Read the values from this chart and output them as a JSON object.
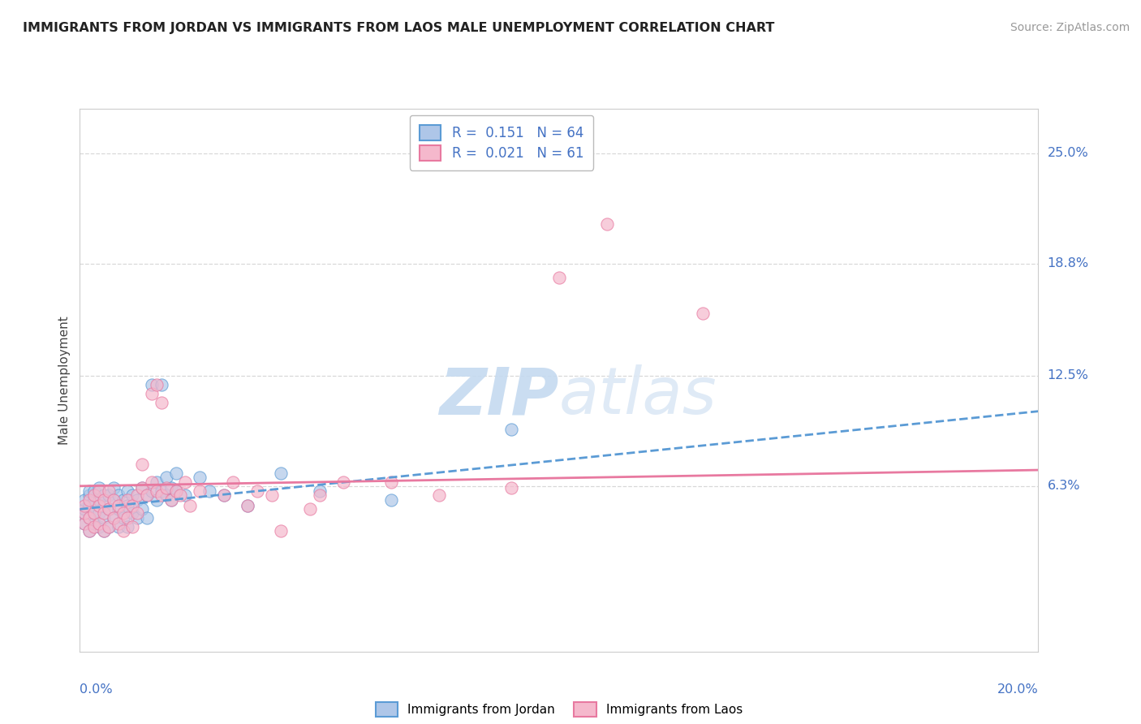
{
  "title": "IMMIGRANTS FROM JORDAN VS IMMIGRANTS FROM LAOS MALE UNEMPLOYMENT CORRELATION CHART",
  "source": "Source: ZipAtlas.com",
  "ylabel": "Male Unemployment",
  "ytick_labels": [
    "6.3%",
    "12.5%",
    "18.8%",
    "25.0%"
  ],
  "ytick_vals": [
    0.063,
    0.125,
    0.188,
    0.25
  ],
  "xmin": 0.0,
  "xmax": 0.2,
  "ymin": -0.03,
  "ymax": 0.275,
  "jordan_color": "#aec6e8",
  "laos_color": "#f5b8cc",
  "jordan_edge_color": "#5b9bd5",
  "laos_edge_color": "#e879a0",
  "jordan_line_color": "#5b9bd5",
  "laos_line_color": "#e879a0",
  "text_color_blue": "#4472c4",
  "watermark_color": "#dce8f5",
  "jordan_scatter": [
    [
      0.001,
      0.042
    ],
    [
      0.001,
      0.048
    ],
    [
      0.001,
      0.05
    ],
    [
      0.001,
      0.055
    ],
    [
      0.002,
      0.038
    ],
    [
      0.002,
      0.045
    ],
    [
      0.002,
      0.052
    ],
    [
      0.002,
      0.058
    ],
    [
      0.002,
      0.06
    ],
    [
      0.003,
      0.042
    ],
    [
      0.003,
      0.048
    ],
    [
      0.003,
      0.055
    ],
    [
      0.003,
      0.06
    ],
    [
      0.004,
      0.04
    ],
    [
      0.004,
      0.048
    ],
    [
      0.004,
      0.055
    ],
    [
      0.004,
      0.062
    ],
    [
      0.005,
      0.038
    ],
    [
      0.005,
      0.045
    ],
    [
      0.005,
      0.052
    ],
    [
      0.005,
      0.058
    ],
    [
      0.006,
      0.04
    ],
    [
      0.006,
      0.05
    ],
    [
      0.006,
      0.058
    ],
    [
      0.007,
      0.045
    ],
    [
      0.007,
      0.055
    ],
    [
      0.007,
      0.062
    ],
    [
      0.008,
      0.04
    ],
    [
      0.008,
      0.05
    ],
    [
      0.008,
      0.058
    ],
    [
      0.009,
      0.045
    ],
    [
      0.009,
      0.055
    ],
    [
      0.01,
      0.04
    ],
    [
      0.01,
      0.052
    ],
    [
      0.01,
      0.06
    ],
    [
      0.011,
      0.048
    ],
    [
      0.011,
      0.058
    ],
    [
      0.012,
      0.045
    ],
    [
      0.012,
      0.055
    ],
    [
      0.013,
      0.05
    ],
    [
      0.013,
      0.062
    ],
    [
      0.014,
      0.045
    ],
    [
      0.014,
      0.058
    ],
    [
      0.015,
      0.06
    ],
    [
      0.015,
      0.12
    ],
    [
      0.016,
      0.055
    ],
    [
      0.016,
      0.065
    ],
    [
      0.017,
      0.06
    ],
    [
      0.017,
      0.12
    ],
    [
      0.018,
      0.058
    ],
    [
      0.018,
      0.068
    ],
    [
      0.019,
      0.055
    ],
    [
      0.019,
      0.062
    ],
    [
      0.02,
      0.06
    ],
    [
      0.02,
      0.07
    ],
    [
      0.022,
      0.058
    ],
    [
      0.025,
      0.068
    ],
    [
      0.027,
      0.06
    ],
    [
      0.03,
      0.058
    ],
    [
      0.035,
      0.052
    ],
    [
      0.042,
      0.07
    ],
    [
      0.05,
      0.06
    ],
    [
      0.065,
      0.055
    ],
    [
      0.09,
      0.095
    ]
  ],
  "laos_scatter": [
    [
      0.001,
      0.042
    ],
    [
      0.001,
      0.048
    ],
    [
      0.001,
      0.052
    ],
    [
      0.002,
      0.038
    ],
    [
      0.002,
      0.045
    ],
    [
      0.002,
      0.055
    ],
    [
      0.003,
      0.04
    ],
    [
      0.003,
      0.048
    ],
    [
      0.003,
      0.058
    ],
    [
      0.004,
      0.042
    ],
    [
      0.004,
      0.052
    ],
    [
      0.004,
      0.06
    ],
    [
      0.005,
      0.038
    ],
    [
      0.005,
      0.048
    ],
    [
      0.005,
      0.055
    ],
    [
      0.006,
      0.04
    ],
    [
      0.006,
      0.05
    ],
    [
      0.006,
      0.06
    ],
    [
      0.007,
      0.045
    ],
    [
      0.007,
      0.055
    ],
    [
      0.008,
      0.042
    ],
    [
      0.008,
      0.052
    ],
    [
      0.009,
      0.038
    ],
    [
      0.009,
      0.048
    ],
    [
      0.01,
      0.045
    ],
    [
      0.01,
      0.055
    ],
    [
      0.011,
      0.04
    ],
    [
      0.011,
      0.052
    ],
    [
      0.012,
      0.048
    ],
    [
      0.012,
      0.058
    ],
    [
      0.013,
      0.062
    ],
    [
      0.013,
      0.075
    ],
    [
      0.014,
      0.058
    ],
    [
      0.015,
      0.065
    ],
    [
      0.015,
      0.115
    ],
    [
      0.016,
      0.06
    ],
    [
      0.016,
      0.12
    ],
    [
      0.017,
      0.058
    ],
    [
      0.017,
      0.11
    ],
    [
      0.018,
      0.062
    ],
    [
      0.019,
      0.055
    ],
    [
      0.02,
      0.06
    ],
    [
      0.021,
      0.058
    ],
    [
      0.022,
      0.065
    ],
    [
      0.023,
      0.052
    ],
    [
      0.025,
      0.06
    ],
    [
      0.03,
      0.058
    ],
    [
      0.032,
      0.065
    ],
    [
      0.035,
      0.052
    ],
    [
      0.037,
      0.06
    ],
    [
      0.04,
      0.058
    ],
    [
      0.042,
      0.038
    ],
    [
      0.048,
      0.05
    ],
    [
      0.05,
      0.058
    ],
    [
      0.055,
      0.065
    ],
    [
      0.065,
      0.065
    ],
    [
      0.075,
      0.058
    ],
    [
      0.09,
      0.062
    ],
    [
      0.1,
      0.18
    ],
    [
      0.11,
      0.21
    ],
    [
      0.13,
      0.16
    ]
  ],
  "jordan_trend_x": [
    0.0,
    0.2
  ],
  "jordan_trend_y": [
    0.05,
    0.105
  ],
  "laos_trend_x": [
    0.0,
    0.2
  ],
  "laos_trend_y": [
    0.063,
    0.072
  ],
  "grid_color": "#d8d8d8",
  "grid_style": "--",
  "background_color": "#ffffff"
}
